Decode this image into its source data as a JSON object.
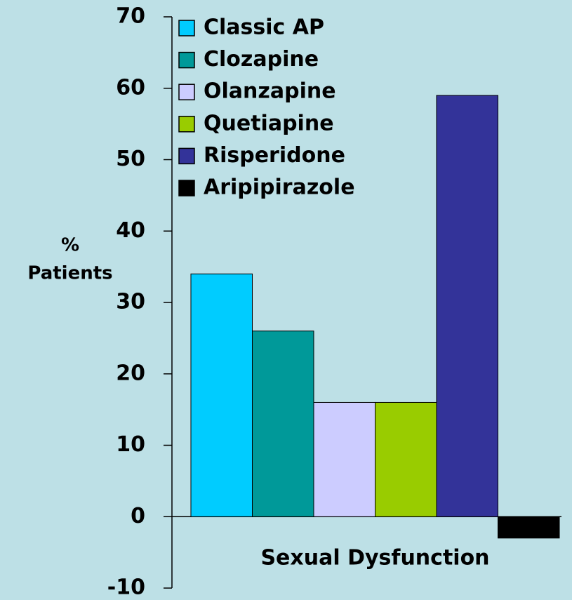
{
  "chart_data": {
    "type": "bar",
    "categories": [
      "Sexual Dysfunction"
    ],
    "y_label": [
      "%",
      "Patients"
    ],
    "series": [
      {
        "name": "Classic AP",
        "color": "#00ccff",
        "values": [
          34
        ]
      },
      {
        "name": "Clozapine",
        "color": "#009999",
        "values": [
          26
        ]
      },
      {
        "name": "Olanzapine",
        "color": "#ccccff",
        "values": [
          16
        ]
      },
      {
        "name": "Quetiapine",
        "color": "#99cc00",
        "values": [
          16
        ]
      },
      {
        "name": "Risperidone",
        "color": "#333399",
        "values": [
          59
        ]
      },
      {
        "name": "Aripipirazole",
        "color": "#000000",
        "values": [
          -3
        ]
      }
    ],
    "ylim": [
      -10,
      70
    ],
    "yticks": [
      -10,
      0,
      10,
      20,
      30,
      40,
      50,
      60,
      70
    ],
    "legend": "upper-left",
    "grid": false
  }
}
